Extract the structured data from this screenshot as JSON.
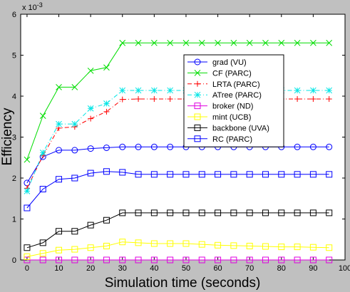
{
  "chart_data": {
    "type": "line",
    "xlabel": "Simulation time (seconds)",
    "ylabel": "Efficiency",
    "y_exponent_label": "x 10",
    "y_exponent_power": "-3",
    "xlim": [
      -2,
      100
    ],
    "ylim": [
      0,
      6
    ],
    "x_ticks": [
      0,
      10,
      20,
      30,
      40,
      50,
      60,
      70,
      80,
      90,
      100
    ],
    "y_ticks": [
      0,
      1,
      2,
      3,
      4,
      5,
      6
    ],
    "grid": false,
    "legend_position": "right-center",
    "x": [
      0,
      5,
      10,
      15,
      20,
      25,
      30,
      35,
      40,
      45,
      50,
      55,
      60,
      65,
      70,
      75,
      80,
      85,
      90,
      95
    ],
    "series": [
      {
        "name": "grad (VU)",
        "color": "#0000ff",
        "marker": "circle",
        "dash": "solid",
        "values": [
          1.88,
          2.52,
          2.68,
          2.68,
          2.72,
          2.74,
          2.76,
          2.76,
          2.76,
          2.76,
          2.76,
          2.76,
          2.76,
          2.76,
          2.76,
          2.76,
          2.76,
          2.76,
          2.76,
          2.76
        ]
      },
      {
        "name": "CF (PARC)",
        "color": "#00dd00",
        "marker": "x",
        "dash": "solid",
        "values": [
          2.45,
          3.52,
          4.22,
          4.22,
          4.62,
          4.7,
          5.3,
          5.3,
          5.3,
          5.3,
          5.3,
          5.3,
          5.3,
          5.3,
          5.3,
          5.3,
          5.3,
          5.3,
          5.3,
          5.3
        ]
      },
      {
        "name": "LRTA (PARC)",
        "color": "#ff0000",
        "marker": "plus",
        "dash": "dashdot",
        "values": [
          1.75,
          2.55,
          3.22,
          3.25,
          3.45,
          3.62,
          3.92,
          3.93,
          3.93,
          3.93,
          3.93,
          3.93,
          3.93,
          3.93,
          3.93,
          3.93,
          3.93,
          3.93,
          3.93,
          3.93
        ]
      },
      {
        "name": "ATree (PARC)",
        "color": "#00e5e5",
        "marker": "star",
        "dash": "dashdot",
        "values": [
          1.68,
          2.62,
          3.32,
          3.32,
          3.7,
          3.82,
          4.14,
          4.14,
          4.14,
          4.14,
          4.14,
          4.14,
          4.14,
          4.14,
          4.14,
          4.14,
          4.14,
          4.14,
          4.14,
          4.14
        ]
      },
      {
        "name": "broker (ND)",
        "color": "#e000e0",
        "marker": "square",
        "dash": "solid",
        "values": [
          0.0,
          0.0,
          0.0,
          0.0,
          0.0,
          0.0,
          0.0,
          0.0,
          0.0,
          0.0,
          0.0,
          0.0,
          0.0,
          0.0,
          0.0,
          0.0,
          0.0,
          0.0,
          0.0,
          0.0
        ]
      },
      {
        "name": "mint (UCB)",
        "color": "#ffff00",
        "marker": "square",
        "dash": "solid",
        "values": [
          0.08,
          0.16,
          0.24,
          0.26,
          0.3,
          0.34,
          0.44,
          0.42,
          0.4,
          0.4,
          0.4,
          0.38,
          0.36,
          0.35,
          0.34,
          0.33,
          0.32,
          0.32,
          0.31,
          0.3
        ]
      },
      {
        "name": "backbone (UVA)",
        "color": "#000000",
        "marker": "square",
        "dash": "solid",
        "values": [
          0.3,
          0.42,
          0.7,
          0.7,
          0.85,
          0.97,
          1.15,
          1.15,
          1.15,
          1.15,
          1.15,
          1.15,
          1.15,
          1.15,
          1.15,
          1.15,
          1.15,
          1.15,
          1.15,
          1.15
        ]
      },
      {
        "name": "RC (PARC)",
        "color": "#0000ff",
        "marker": "square",
        "dash": "solid",
        "values": [
          1.27,
          1.73,
          1.97,
          2.0,
          2.12,
          2.16,
          2.14,
          2.09,
          2.09,
          2.09,
          2.09,
          2.09,
          2.09,
          2.09,
          2.09,
          2.09,
          2.09,
          2.09,
          2.09,
          2.09
        ]
      }
    ]
  }
}
